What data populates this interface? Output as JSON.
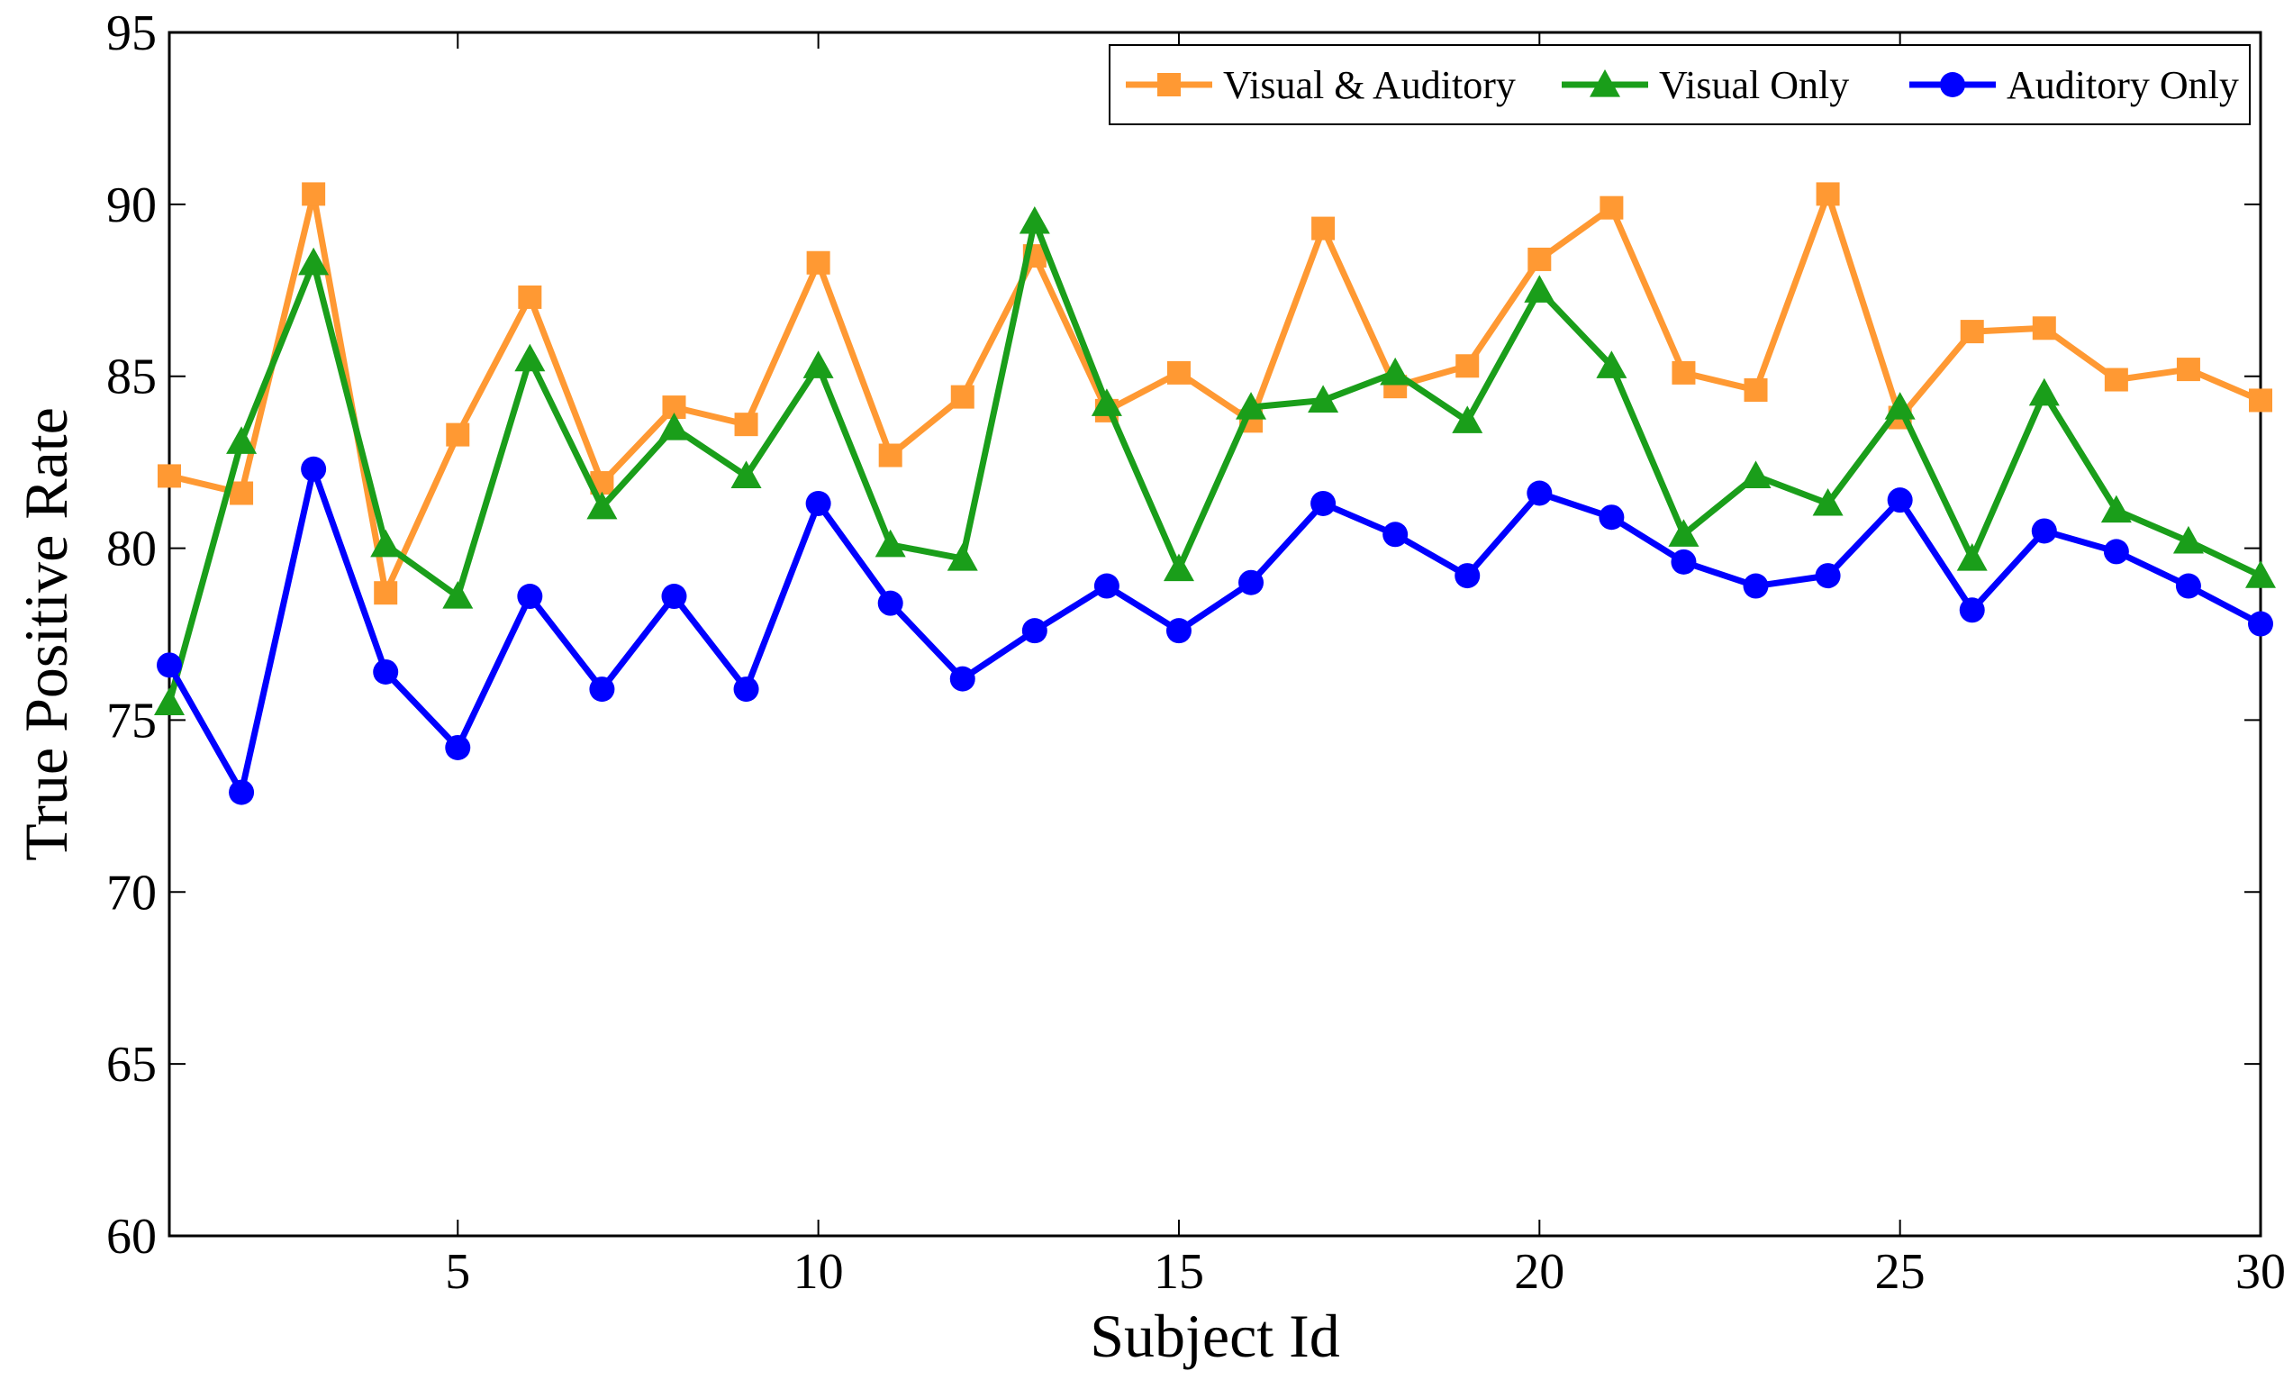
{
  "chart_data": {
    "type": "line",
    "title": "",
    "xlabel": "Subject Id",
    "ylabel": "True Positive Rate",
    "xlim": [
      1,
      30
    ],
    "ylim": [
      60,
      95
    ],
    "xticks": [
      5,
      10,
      15,
      20,
      25,
      30
    ],
    "yticks": [
      60,
      65,
      70,
      75,
      80,
      85,
      90,
      95
    ],
    "legend_position": "top-right",
    "x": [
      1,
      2,
      3,
      4,
      5,
      6,
      7,
      8,
      9,
      10,
      11,
      12,
      13,
      14,
      15,
      16,
      17,
      18,
      19,
      20,
      21,
      22,
      23,
      24,
      25,
      26,
      27,
      28,
      29,
      30
    ],
    "series": [
      {
        "name": "Visual & Auditory",
        "color": "#FF9933",
        "marker": "square",
        "values": [
          82.1,
          81.6,
          90.3,
          78.7,
          83.3,
          87.3,
          81.9,
          84.1,
          83.6,
          88.3,
          82.7,
          84.4,
          88.5,
          84.0,
          85.1,
          83.7,
          89.3,
          84.7,
          85.3,
          88.4,
          89.9,
          85.1,
          84.6,
          90.3,
          83.8,
          86.3,
          86.4,
          84.9,
          85.2,
          84.3
        ]
      },
      {
        "name": "Visual Only",
        "color": "#1A9E1A",
        "marker": "triangle",
        "values": [
          75.5,
          83.1,
          88.3,
          80.1,
          78.6,
          85.5,
          81.2,
          83.5,
          82.1,
          85.3,
          80.1,
          79.7,
          89.5,
          84.2,
          79.4,
          84.1,
          84.3,
          85.1,
          83.7,
          87.5,
          85.3,
          80.4,
          82.1,
          81.3,
          84.1,
          79.7,
          84.5,
          81.1,
          80.2,
          79.2
        ]
      },
      {
        "name": "Auditory Only",
        "color": "#0000FF",
        "marker": "circle",
        "values": [
          76.6,
          72.9,
          82.3,
          76.4,
          74.2,
          78.6,
          75.9,
          78.6,
          75.9,
          81.3,
          78.4,
          76.2,
          77.6,
          78.9,
          77.6,
          79.0,
          81.3,
          80.4,
          79.2,
          81.6,
          80.9,
          79.6,
          78.9,
          79.2,
          81.4,
          78.2,
          80.5,
          79.9,
          78.9,
          77.8
        ]
      }
    ]
  }
}
